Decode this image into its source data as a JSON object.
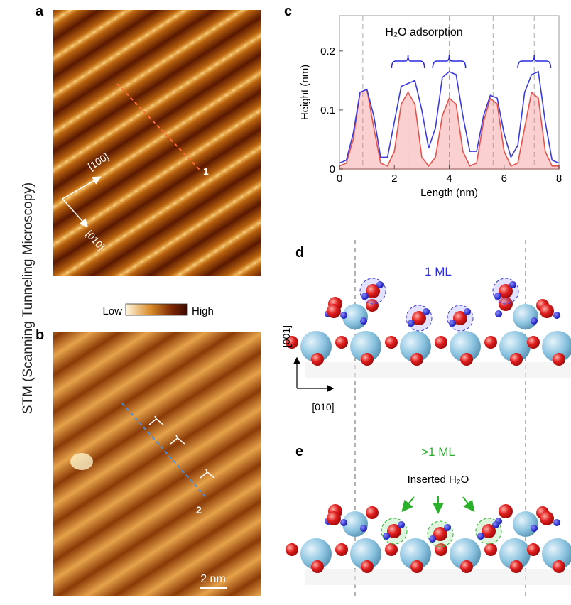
{
  "panel_labels": {
    "a": "a",
    "b": "b",
    "c": "c",
    "d": "d",
    "e": "e"
  },
  "side_label": "STM (Scanning Tunneling Microscopy)",
  "colorbar": {
    "low": "Low",
    "high": "High"
  },
  "image_a": {
    "direction_1": "[100]",
    "direction_2": "[010]",
    "line_label": "1"
  },
  "image_b": {
    "line_label": "2",
    "scale_bar": "2 nm"
  },
  "chart_data": {
    "type": "line",
    "annotation": "H₂O adsorption",
    "xlabel": "Length (nm)",
    "ylabel": "Height (nm)",
    "xlim": [
      0,
      8
    ],
    "xticks": [
      0,
      2,
      4,
      6,
      8
    ],
    "ylim": [
      0,
      0.26
    ],
    "yticks": [
      0,
      0.1,
      0.2
    ],
    "reference_lines": [
      0.85,
      2.5,
      4.0,
      5.6,
      7.1
    ],
    "bracket_x": [
      2.5,
      4.0,
      7.1
    ],
    "x": [
      0,
      0.25,
      0.5,
      0.75,
      1,
      1.25,
      1.5,
      1.75,
      2,
      2.25,
      2.5,
      2.75,
      3,
      3.25,
      3.5,
      3.75,
      4,
      4.25,
      4.5,
      4.75,
      5,
      5.25,
      5.5,
      5.75,
      6,
      6.25,
      6.5,
      6.75,
      7,
      7.25,
      7.5,
      7.75,
      8
    ],
    "series": [
      {
        "color": "#3b3bdc",
        "values": [
          0.01,
          0.015,
          0.06,
          0.13,
          0.135,
          0.09,
          0.02,
          0.02,
          0.08,
          0.14,
          0.145,
          0.15,
          0.1,
          0.035,
          0.07,
          0.155,
          0.165,
          0.16,
          0.09,
          0.03,
          0.03,
          0.09,
          0.125,
          0.12,
          0.06,
          0.02,
          0.04,
          0.13,
          0.16,
          0.165,
          0.08,
          0.015,
          0.01
        ]
      },
      {
        "color": "#e8504a",
        "values": [
          0.005,
          0.01,
          0.05,
          0.13,
          0.135,
          0.07,
          0.01,
          0.005,
          0.03,
          0.11,
          0.13,
          0.11,
          0.02,
          0.005,
          0.02,
          0.09,
          0.12,
          0.11,
          0.03,
          0.005,
          0.01,
          0.08,
          0.12,
          0.11,
          0.03,
          0.005,
          0.01,
          0.07,
          0.13,
          0.12,
          0.03,
          0.005,
          0.005
        ]
      }
    ]
  },
  "model_d": {
    "label": "1 ML",
    "axis_vertical": "[001]",
    "axis_horizontal": "[010]"
  },
  "model_e": {
    "label": ">1 ML",
    "annotation": "Inserted H₂O"
  }
}
